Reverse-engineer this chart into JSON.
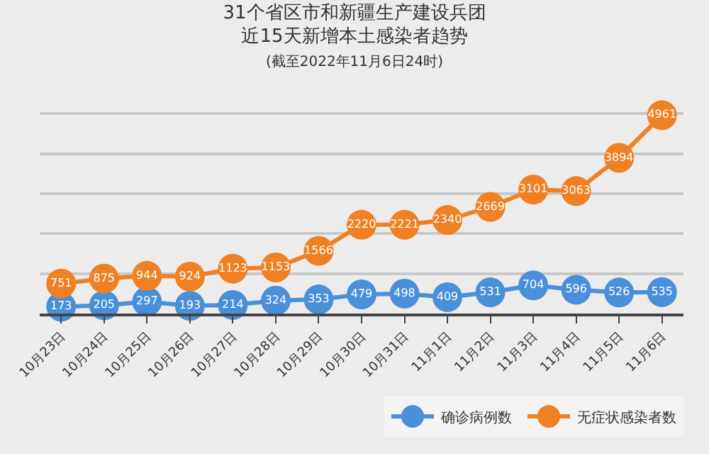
{
  "chart_data": {
    "type": "line",
    "title": "31个省区市和新疆生产建设兵团近15天新增本土感染者趋势",
    "subtitle": "(截至2022年11月6日24时)",
    "categories": [
      "10月23日",
      "10月24日",
      "10月25日",
      "10月26日",
      "10月27日",
      "10月28日",
      "10月29日",
      "10月30日",
      "10月31日",
      "11月1日",
      "11月2日",
      "11月3日",
      "11月4日",
      "11月5日",
      "11月6日"
    ],
    "series": [
      {
        "name": "确诊病例数",
        "color": "#4a90d9",
        "values": [
          173,
          205,
          297,
          193,
          214,
          324,
          353,
          479,
          498,
          409,
          531,
          704,
          596,
          526,
          535
        ]
      },
      {
        "name": "无症状感染者数",
        "color": "#f08024",
        "values": [
          751,
          875,
          944,
          924,
          1123,
          1153,
          1566,
          2220,
          2221,
          2340,
          2669,
          3101,
          3063,
          3894,
          4961
        ]
      }
    ],
    "grid": "y",
    "legend": "bottom right",
    "marker": "circle",
    "line_style": "solid",
    "data_labels": true
  }
}
